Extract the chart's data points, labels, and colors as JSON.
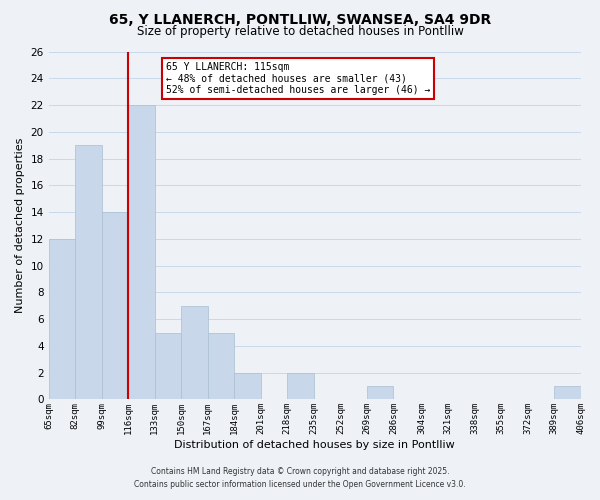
{
  "title": "65, Y LLANERCH, PONTLLIW, SWANSEA, SA4 9DR",
  "subtitle": "Size of property relative to detached houses in Pontlliw",
  "xlabel": "Distribution of detached houses by size in Pontlliw",
  "ylabel": "Number of detached properties",
  "bar_edges": [
    65,
    82,
    99,
    116,
    133,
    150,
    167,
    184,
    201,
    218,
    235,
    252,
    269,
    286,
    304,
    321,
    338,
    355,
    372,
    389,
    406
  ],
  "bar_heights": [
    12,
    19,
    14,
    22,
    5,
    7,
    5,
    2,
    0,
    2,
    0,
    0,
    1,
    0,
    0,
    0,
    0,
    0,
    0,
    1
  ],
  "bar_color": "#c8d8ea",
  "bar_edgecolor": "#aabfd0",
  "grid_color": "#c8d8ea",
  "background_color": "#eef2f7",
  "red_line_x": 116,
  "annotation_title": "65 Y LLANERCH: 115sqm",
  "annotation_line1": "← 48% of detached houses are smaller (43)",
  "annotation_line2": "52% of semi-detached houses are larger (46) →",
  "annotation_box_color": "#ffffff",
  "annotation_box_edgecolor": "#cc0000",
  "red_line_color": "#cc0000",
  "ylim": [
    0,
    26
  ],
  "yticks": [
    0,
    2,
    4,
    6,
    8,
    10,
    12,
    14,
    16,
    18,
    20,
    22,
    24,
    26
  ],
  "tick_labels": [
    "65sqm",
    "82sqm",
    "99sqm",
    "116sqm",
    "133sqm",
    "150sqm",
    "167sqm",
    "184sqm",
    "201sqm",
    "218sqm",
    "235sqm",
    "252sqm",
    "269sqm",
    "286sqm",
    "304sqm",
    "321sqm",
    "338sqm",
    "355sqm",
    "372sqm",
    "389sqm",
    "406sqm"
  ],
  "footer1": "Contains HM Land Registry data © Crown copyright and database right 2025.",
  "footer2": "Contains public sector information licensed under the Open Government Licence v3.0."
}
